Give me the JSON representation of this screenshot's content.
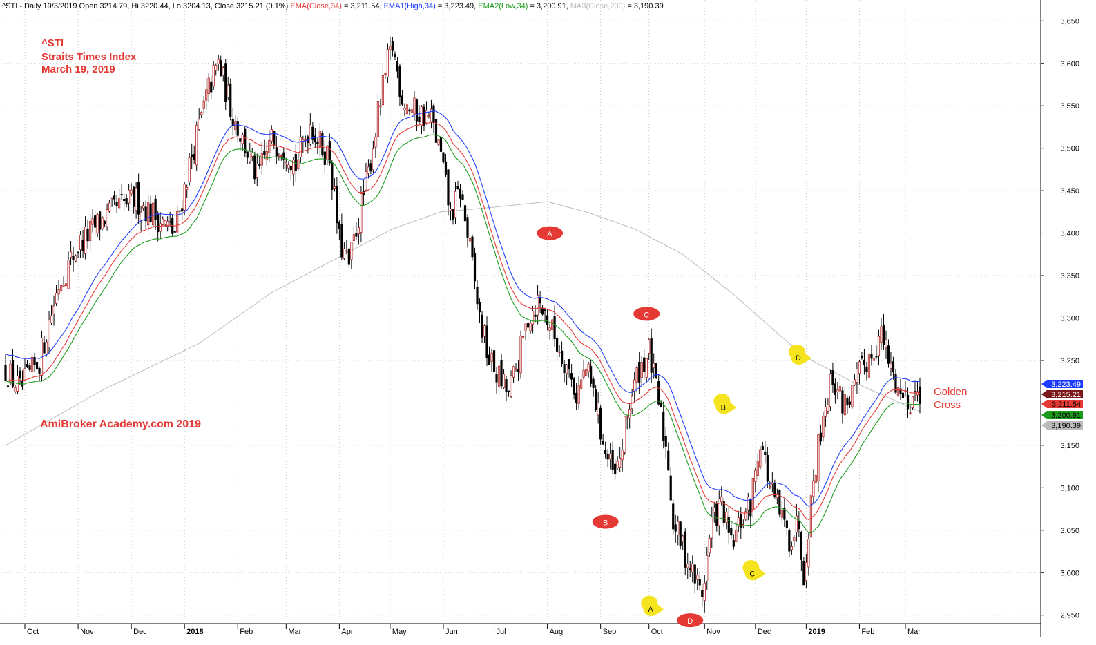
{
  "header": {
    "parts": [
      {
        "text": "^STI - Daily 19/3/2019 Open 3214.79, Hi 3220.44, Lo 3204.13, Close 3215.21 (0.1%) ",
        "color": "#000000"
      },
      {
        "text": "EMA(Close,34)",
        "color": "#e53935"
      },
      {
        "text": " = 3,211.54, ",
        "color": "#000000"
      },
      {
        "text": "EMA1(High,34)",
        "color": "#1e3cff"
      },
      {
        "text": " = 3,223.49, ",
        "color": "#000000"
      },
      {
        "text": "EMA2(Low,34)",
        "color": "#1a9c1a"
      },
      {
        "text": " = 3,200.91, ",
        "color": "#000000"
      },
      {
        "text": "MA3(Close,200)",
        "color": "#bbbbbb"
      },
      {
        "text": " = 3,190.39",
        "color": "#000000"
      }
    ]
  },
  "annotations": {
    "title_lines": [
      "^STI",
      "Straits Times Index",
      "March 19, 2019"
    ],
    "watermark": "AmiBroker Academy.com  2019",
    "golden_cross": [
      "Golden",
      "Cross"
    ]
  },
  "chart_data": {
    "type": "candlestick",
    "ylim": [
      2940,
      3660
    ],
    "yticks": [
      2950,
      3000,
      3050,
      3100,
      3150,
      3200,
      3250,
      3300,
      3350,
      3400,
      3450,
      3500,
      3550,
      3600,
      3650
    ],
    "ytick_labels": [
      "2,950",
      "3,000",
      "3,050",
      "3,100",
      "3,150",
      "3,200",
      "3,250",
      "3,300",
      "3,350",
      "3,400",
      "3,450",
      "3,500",
      "3,550",
      "3,600",
      "3,650"
    ],
    "months": [
      {
        "label": "Oct",
        "idx": 8,
        "bold": false
      },
      {
        "label": "Nov",
        "idx": 30,
        "bold": false
      },
      {
        "label": "Dec",
        "idx": 52,
        "bold": false
      },
      {
        "label": "2018",
        "idx": 74,
        "bold": true
      },
      {
        "label": "Feb",
        "idx": 96,
        "bold": false
      },
      {
        "label": "Mar",
        "idx": 116,
        "bold": false
      },
      {
        "label": "Apr",
        "idx": 138,
        "bold": false
      },
      {
        "label": "May",
        "idx": 159,
        "bold": false
      },
      {
        "label": "Jun",
        "idx": 181,
        "bold": false
      },
      {
        "label": "Jul",
        "idx": 202,
        "bold": false
      },
      {
        "label": "Aug",
        "idx": 224,
        "bold": false
      },
      {
        "label": "Sep",
        "idx": 246,
        "bold": false
      },
      {
        "label": "Oct",
        "idx": 266,
        "bold": false
      },
      {
        "label": "Nov",
        "idx": 289,
        "bold": false
      },
      {
        "label": "Dec",
        "idx": 310,
        "bold": false
      },
      {
        "label": "2019",
        "idx": 331,
        "bold": true
      },
      {
        "label": "Feb",
        "idx": 353,
        "bold": false
      },
      {
        "label": "Mar",
        "idx": 372,
        "bold": false
      }
    ],
    "anchors": [
      [
        0,
        3240
      ],
      [
        6,
        3215
      ],
      [
        14,
        3250
      ],
      [
        22,
        3340
      ],
      [
        30,
        3385
      ],
      [
        38,
        3410
      ],
      [
        46,
        3430
      ],
      [
        54,
        3440
      ],
      [
        62,
        3420
      ],
      [
        70,
        3400
      ],
      [
        76,
        3480
      ],
      [
        84,
        3570
      ],
      [
        88,
        3600
      ],
      [
        94,
        3540
      ],
      [
        98,
        3510
      ],
      [
        104,
        3465
      ],
      [
        110,
        3510
      ],
      [
        116,
        3500
      ],
      [
        120,
        3480
      ],
      [
        126,
        3530
      ],
      [
        130,
        3505
      ],
      [
        134,
        3490
      ],
      [
        138,
        3390
      ],
      [
        142,
        3360
      ],
      [
        146,
        3420
      ],
      [
        150,
        3470
      ],
      [
        154,
        3540
      ],
      [
        158,
        3600
      ],
      [
        160,
        3620
      ],
      [
        164,
        3560
      ],
      [
        168,
        3545
      ],
      [
        172,
        3540
      ],
      [
        176,
        3535
      ],
      [
        180,
        3490
      ],
      [
        184,
        3420
      ],
      [
        188,
        3450
      ],
      [
        192,
        3380
      ],
      [
        196,
        3300
      ],
      [
        200,
        3250
      ],
      [
        204,
        3230
      ],
      [
        208,
        3210
      ],
      [
        212,
        3250
      ],
      [
        216,
        3300
      ],
      [
        220,
        3320
      ],
      [
        224,
        3300
      ],
      [
        228,
        3270
      ],
      [
        232,
        3245
      ],
      [
        236,
        3210
      ],
      [
        240,
        3240
      ],
      [
        244,
        3200
      ],
      [
        248,
        3140
      ],
      [
        252,
        3110
      ],
      [
        254,
        3135
      ],
      [
        258,
        3200
      ],
      [
        262,
        3240
      ],
      [
        266,
        3260
      ],
      [
        270,
        3200
      ],
      [
        274,
        3130
      ],
      [
        276,
        3060
      ],
      [
        280,
        3030
      ],
      [
        284,
        3000
      ],
      [
        288,
        2975
      ],
      [
        292,
        3060
      ],
      [
        296,
        3080
      ],
      [
        300,
        3030
      ],
      [
        304,
        3060
      ],
      [
        308,
        3080
      ],
      [
        312,
        3160
      ],
      [
        316,
        3100
      ],
      [
        320,
        3070
      ],
      [
        324,
        3040
      ],
      [
        328,
        3060
      ],
      [
        330,
        3000
      ],
      [
        334,
        3110
      ],
      [
        338,
        3190
      ],
      [
        342,
        3230
      ],
      [
        346,
        3200
      ],
      [
        350,
        3210
      ],
      [
        354,
        3240
      ],
      [
        358,
        3260
      ],
      [
        362,
        3280
      ],
      [
        366,
        3240
      ],
      [
        370,
        3210
      ],
      [
        374,
        3205
      ],
      [
        378,
        3215
      ]
    ],
    "n_bars": 379,
    "series": [
      {
        "name": "EMA(Close,34)",
        "color": "#e53935",
        "last": 3211.54
      },
      {
        "name": "EMA1(High,34)",
        "color": "#1e3cff",
        "last": 3223.49
      },
      {
        "name": "EMA2(Low,34)",
        "color": "#1a9c1a",
        "last": 3200.91
      },
      {
        "name": "MA3(Close,200)",
        "color": "#bbbbbb",
        "last": 3190.39
      }
    ],
    "ma200_anchors": [
      [
        0,
        3150
      ],
      [
        40,
        3215
      ],
      [
        80,
        3270
      ],
      [
        110,
        3330
      ],
      [
        130,
        3360
      ],
      [
        160,
        3405
      ],
      [
        180,
        3425
      ],
      [
        200,
        3430
      ],
      [
        224,
        3437
      ],
      [
        240,
        3425
      ],
      [
        260,
        3405
      ],
      [
        280,
        3375
      ],
      [
        300,
        3330
      ],
      [
        320,
        3280
      ],
      [
        330,
        3255
      ],
      [
        350,
        3225
      ],
      [
        378,
        3190
      ]
    ],
    "price_labels": [
      {
        "text": "3,223.49",
        "value": 3223.49,
        "bg": "#1e3cff",
        "fg": "#ffffff"
      },
      {
        "text": "3,215.21",
        "value": 3215.21,
        "bg": "#7a1a1a",
        "fg": "#ffffff"
      },
      {
        "text": "3,211.54",
        "value": 3211.54,
        "bg": "#e53935",
        "fg": "#000000"
      },
      {
        "text": "3,200.91",
        "value": 3200.91,
        "bg": "#1a9c1a",
        "fg": "#000000"
      },
      {
        "text": "3,190.39",
        "value": 3190.39,
        "bg": "#bbbbbb",
        "fg": "#000000"
      }
    ],
    "wave_markers": [
      {
        "label": "A",
        "idx": 225,
        "value": 3400,
        "color": "#e53935",
        "shape": "ellipse"
      },
      {
        "label": "C",
        "idx": 265,
        "value": 3305,
        "color": "#e53935",
        "shape": "ellipse"
      },
      {
        "label": "B",
        "idx": 248,
        "value": 3060,
        "color": "#e53935",
        "shape": "ellipse"
      },
      {
        "label": "D",
        "idx": 283,
        "value": 2944,
        "color": "#e53935",
        "shape": "ellipse"
      },
      {
        "label": "D",
        "idx": 328,
        "value": 3254,
        "color": "#f5e31e",
        "shape": "arrow"
      },
      {
        "label": "B",
        "idx": 297,
        "value": 3196,
        "color": "#f5e31e",
        "shape": "arrow"
      },
      {
        "label": "C",
        "idx": 309,
        "value": 3000,
        "color": "#f5e31e",
        "shape": "arrow"
      },
      {
        "label": "A",
        "idx": 267,
        "value": 2958,
        "color": "#f5e31e",
        "shape": "arrow"
      }
    ]
  }
}
